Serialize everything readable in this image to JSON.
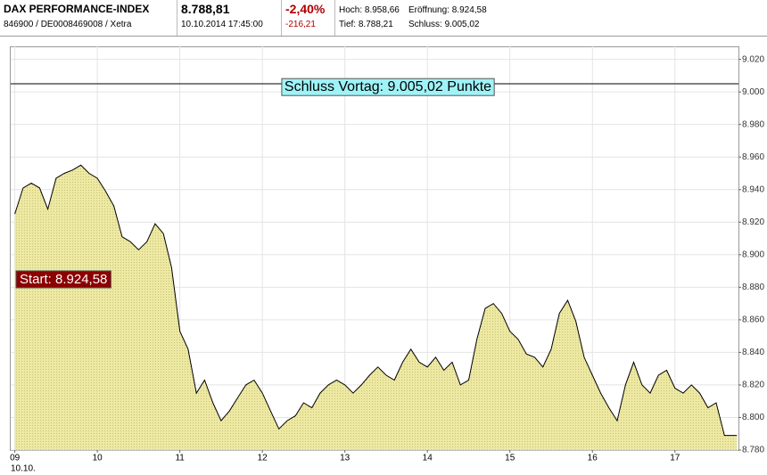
{
  "header": {
    "title": "DAX PERFORMANCE-INDEX",
    "id": "846900 / DE0008469008 / Xetra",
    "price": "8.788,81",
    "datetime": "10.10.2014 17:45:00",
    "change_pct": "-2,40%",
    "change_abs": "-216,21",
    "high": "Hoch: 8.958,66",
    "open": "Eröffnung: 8.924,58",
    "low": "Tief: 8.788,21",
    "close": "Schluss: 9.005,02"
  },
  "chart_data": {
    "type": "area",
    "color": "#000000",
    "fill": "#ede9a2",
    "grid": true,
    "x": [
      9.0,
      9.1,
      9.2,
      9.3,
      9.4,
      9.5,
      9.6,
      9.7,
      9.8,
      9.9,
      10.0,
      10.1,
      10.2,
      10.3,
      10.4,
      10.5,
      10.6,
      10.7,
      10.8,
      10.9,
      11.0,
      11.1,
      11.2,
      11.3,
      11.4,
      11.5,
      11.6,
      11.7,
      11.8,
      11.9,
      12.0,
      12.1,
      12.2,
      12.3,
      12.4,
      12.5,
      12.6,
      12.7,
      12.8,
      12.9,
      13.0,
      13.1,
      13.2,
      13.3,
      13.4,
      13.5,
      13.6,
      13.7,
      13.8,
      13.9,
      14.0,
      14.1,
      14.2,
      14.3,
      14.4,
      14.5,
      14.6,
      14.7,
      14.8,
      14.9,
      15.0,
      15.1,
      15.2,
      15.3,
      15.4,
      15.5,
      15.6,
      15.7,
      15.8,
      15.9,
      16.0,
      16.1,
      16.2,
      16.3,
      16.4,
      16.5,
      16.6,
      16.7,
      16.8,
      16.9,
      17.0,
      17.1,
      17.2,
      17.3,
      17.4,
      17.5,
      17.6,
      17.75
    ],
    "values": [
      8925,
      8941,
      8944,
      8941,
      8928,
      8947,
      8950,
      8952,
      8955,
      8950,
      8947,
      8939,
      8930,
      8911,
      8908,
      8903,
      8908,
      8919,
      8913,
      8892,
      8853,
      8842,
      8815,
      8823,
      8809,
      8798,
      8804,
      8812,
      8820,
      8823,
      8815,
      8804,
      8793,
      8798,
      8801,
      8809,
      8806,
      8815,
      8820,
      8823,
      8820,
      8815,
      8820,
      8826,
      8831,
      8826,
      8823,
      8834,
      8842,
      8834,
      8831,
      8837,
      8829,
      8834,
      8820,
      8823,
      8848,
      8867,
      8870,
      8864,
      8853,
      8848,
      8839,
      8837,
      8831,
      8842,
      8864,
      8872,
      8859,
      8837,
      8826,
      8815,
      8806,
      8798,
      8820,
      8834,
      8820,
      8815,
      8826,
      8829,
      8818,
      8815,
      8820,
      8815,
      8806,
      8809,
      8789,
      8789
    ],
    "xlim": [
      8.95,
      17.77
    ],
    "xticks": [
      {
        "value": 9,
        "label": "09"
      },
      10,
      11,
      12,
      13,
      14,
      15,
      16,
      17
    ],
    "date_label": "10.10.",
    "ylim": [
      8780,
      9028
    ],
    "yticks": [
      {
        "value": 8780,
        "label": "8.780"
      },
      {
        "value": 8800,
        "label": "8.800"
      },
      {
        "value": 8820,
        "label": "8.820"
      },
      {
        "value": 8840,
        "label": "8.840"
      },
      {
        "value": 8860,
        "label": "8.860"
      },
      {
        "value": 8880,
        "label": "8.880"
      },
      {
        "value": 8900,
        "label": "8.900"
      },
      {
        "value": 8920,
        "label": "8.920"
      },
      {
        "value": 8940,
        "label": "8.940"
      },
      {
        "value": 8960,
        "label": "8.960"
      },
      {
        "value": 8980,
        "label": "8.980"
      },
      {
        "value": 9000,
        "label": "9.000"
      },
      {
        "value": 9020,
        "label": "9.020"
      }
    ],
    "reference_line": {
      "value": 9005.02,
      "label": "Schluss Vortag: 9.005,02 Punkte"
    },
    "annotation": "Start: 8.924,58"
  }
}
